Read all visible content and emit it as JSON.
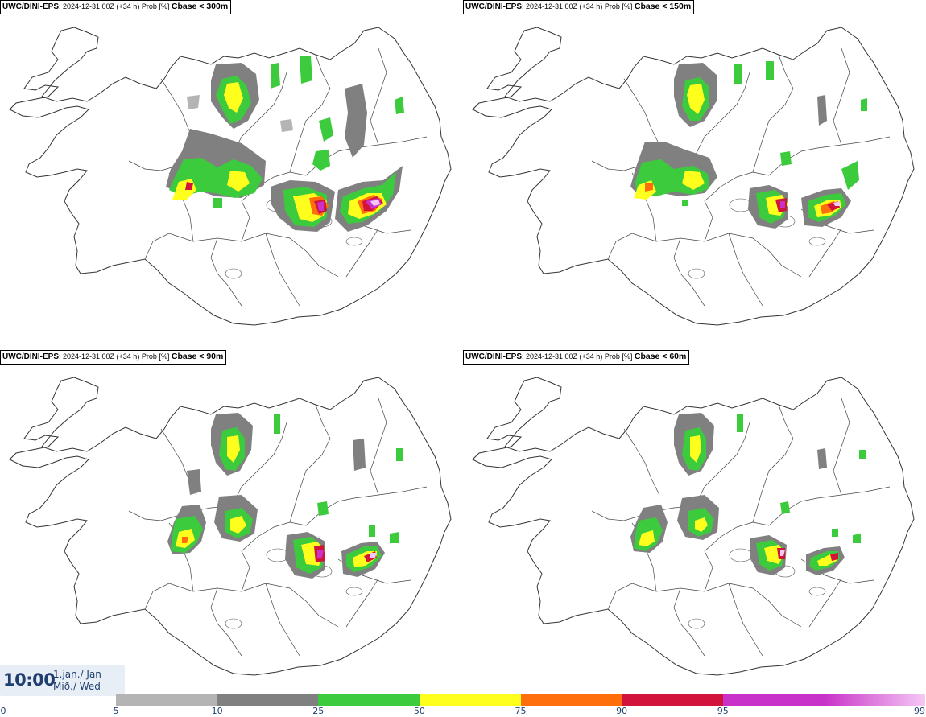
{
  "panels": [
    {
      "model": "UWC/DINI-EPS",
      "run": ": 2024-12-31 00Z (+34 h) Prob [%]",
      "variable": "Cbase < 300m"
    },
    {
      "model": "UWC/DINI-EPS",
      "run": ": 2024-12-31 00Z (+34 h) Prob [%]",
      "variable": "Cbase < 150m"
    },
    {
      "model": "UWC/DINI-EPS",
      "run": ": 2024-12-31 00Z (+34 h) Prob [%]",
      "variable": "Cbase < 90m"
    },
    {
      "model": "UWC/DINI-EPS",
      "run": ": 2024-12-31 00Z (+34 h) Prob [%]",
      "variable": "Cbase < 60m"
    }
  ],
  "time": {
    "clock": "10:00",
    "date_line1": "1.jan./ Jan",
    "date_line2": "Mið./ Wed"
  },
  "legend": {
    "ticks": [
      "0",
      "5",
      "10",
      "25",
      "50",
      "75",
      "90",
      "95",
      "99"
    ],
    "colors": [
      "#b4b4b4",
      "#808080",
      "#3ccb3c",
      "#ffff1e",
      "#ff6e0a",
      "#d2143c",
      "#c832c8",
      "#f5c8f5"
    ]
  }
}
